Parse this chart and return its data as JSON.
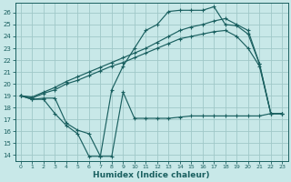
{
  "xlabel": "Humidex (Indice chaleur)",
  "bg_color": "#c8e8e8",
  "grid_color": "#a0c8c8",
  "line_color": "#1a6060",
  "xlim": [
    -0.5,
    23.5
  ],
  "ylim": [
    13.5,
    26.8
  ],
  "xticks": [
    0,
    1,
    2,
    3,
    4,
    5,
    6,
    7,
    8,
    9,
    10,
    11,
    12,
    13,
    14,
    15,
    16,
    17,
    18,
    19,
    20,
    21,
    22,
    23
  ],
  "yticks": [
    14,
    15,
    16,
    17,
    18,
    19,
    20,
    21,
    22,
    23,
    24,
    25,
    26
  ],
  "line_jagged_x": [
    0,
    1,
    2,
    3,
    4,
    5,
    6,
    7,
    8,
    9,
    10,
    11,
    12,
    13,
    14,
    15,
    16,
    17,
    18,
    19,
    20,
    21,
    22,
    23
  ],
  "line_jagged_y": [
    19.0,
    18.7,
    18.8,
    18.8,
    16.7,
    16.1,
    15.8,
    13.9,
    13.9,
    19.3,
    17.1,
    17.1,
    17.1,
    17.1,
    17.2,
    17.3,
    17.3,
    17.3,
    17.3,
    17.3,
    17.3,
    17.3,
    17.5,
    17.5
  ],
  "line_smooth1_x": [
    0,
    1,
    2,
    3,
    4,
    5,
    6,
    7,
    8,
    9,
    10,
    11,
    12,
    13,
    14,
    15,
    16,
    17,
    18,
    19,
    20,
    21,
    22,
    23
  ],
  "line_smooth1_y": [
    19.0,
    18.8,
    19.2,
    19.5,
    20.0,
    20.3,
    20.7,
    21.1,
    21.5,
    21.8,
    22.2,
    22.6,
    23.0,
    23.4,
    23.8,
    24.0,
    24.2,
    24.4,
    24.5,
    24.0,
    23.0,
    21.5,
    17.5,
    17.5
  ],
  "line_smooth2_x": [
    0,
    1,
    2,
    3,
    4,
    5,
    6,
    7,
    8,
    9,
    10,
    11,
    12,
    13,
    14,
    15,
    16,
    17,
    18,
    19,
    20,
    21,
    22,
    23
  ],
  "line_smooth2_y": [
    19.0,
    18.9,
    19.3,
    19.7,
    20.2,
    20.6,
    21.0,
    21.4,
    21.8,
    22.2,
    22.6,
    23.0,
    23.5,
    24.0,
    24.5,
    24.8,
    25.0,
    25.3,
    25.5,
    25.0,
    24.5,
    21.7,
    17.5,
    17.5
  ],
  "line_top_x": [
    0,
    1,
    2,
    3,
    4,
    5,
    6,
    7,
    8,
    9,
    10,
    11,
    12,
    13,
    14,
    15,
    16,
    17,
    18,
    19,
    20,
    21,
    22,
    23
  ],
  "line_top_y": [
    19.0,
    18.7,
    18.7,
    17.5,
    16.5,
    15.8,
    13.9,
    13.9,
    19.5,
    21.5,
    23.0,
    24.5,
    25.0,
    26.1,
    26.2,
    26.2,
    26.2,
    26.5,
    25.0,
    24.9,
    24.2,
    21.7,
    17.5,
    17.5
  ]
}
